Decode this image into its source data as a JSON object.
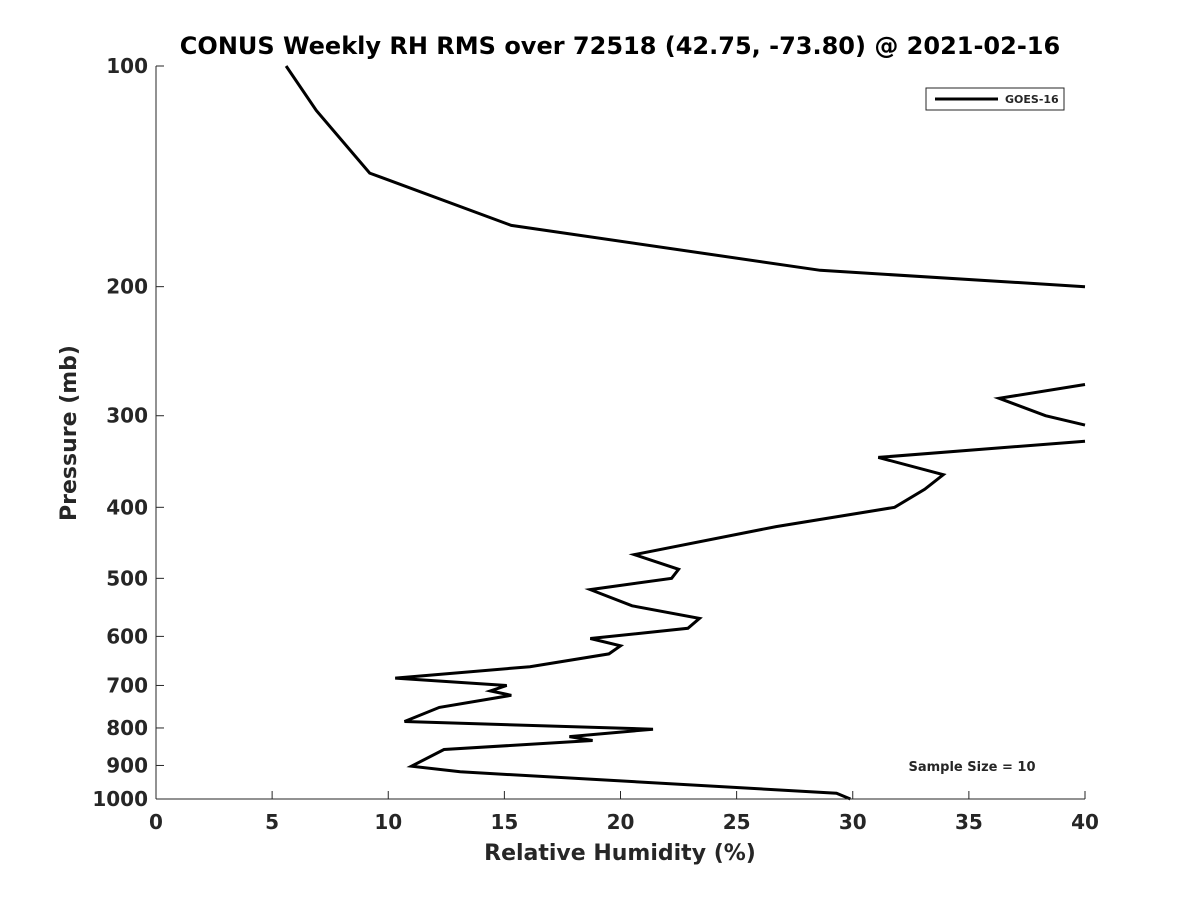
{
  "chart_data": {
    "type": "line",
    "title": "CONUS Weekly RH RMS over 72518 (42.75, -73.80) @ 2021-02-16",
    "xlabel": "Relative Humidity (%)",
    "ylabel": "Pressure (mb)",
    "xlim": [
      0,
      40
    ],
    "ylim": [
      1000,
      100
    ],
    "y_scale": "log",
    "y_reversed": true,
    "grid": false,
    "legend_position": "top-right",
    "x_ticks": [
      0,
      5,
      10,
      15,
      20,
      25,
      30,
      35,
      40
    ],
    "x_tick_labels": [
      "0",
      "5",
      "10",
      "15",
      "20",
      "25",
      "30",
      "35",
      "40"
    ],
    "y_ticks": [
      100,
      200,
      300,
      400,
      500,
      600,
      700,
      800,
      900,
      1000
    ],
    "y_tick_labels": [
      "100",
      "200",
      "300",
      "400",
      "500",
      "600",
      "700",
      "800",
      "900",
      "1000"
    ],
    "annotation": "Sample Size = 10",
    "series": [
      {
        "name": "GOES-16",
        "color": "#000000",
        "segments": [
          [
            {
              "x": 5.6,
              "y": 100
            },
            {
              "x": 6.9,
              "y": 115
            },
            {
              "x": 9.2,
              "y": 140
            },
            {
              "x": 15.3,
              "y": 165
            },
            {
              "x": 28.6,
              "y": 190
            },
            {
              "x": 40.0,
              "y": 200
            }
          ],
          [
            {
              "x": 40.0,
              "y": 272
            },
            {
              "x": 36.3,
              "y": 284
            },
            {
              "x": 38.3,
              "y": 300
            },
            {
              "x": 40.0,
              "y": 309
            }
          ],
          [
            {
              "x": 40.0,
              "y": 325
            },
            {
              "x": 31.1,
              "y": 342
            },
            {
              "x": 33.9,
              "y": 361
            },
            {
              "x": 33.1,
              "y": 378
            },
            {
              "x": 31.8,
              "y": 400
            },
            {
              "x": 26.7,
              "y": 425
            },
            {
              "x": 20.6,
              "y": 464
            },
            {
              "x": 22.5,
              "y": 486
            },
            {
              "x": 22.2,
              "y": 500
            },
            {
              "x": 18.7,
              "y": 518
            },
            {
              "x": 20.5,
              "y": 545
            },
            {
              "x": 23.4,
              "y": 567
            },
            {
              "x": 22.9,
              "y": 585
            },
            {
              "x": 18.7,
              "y": 604
            },
            {
              "x": 20.0,
              "y": 618
            },
            {
              "x": 19.5,
              "y": 634
            },
            {
              "x": 16.1,
              "y": 660
            },
            {
              "x": 10.3,
              "y": 684
            },
            {
              "x": 15.1,
              "y": 700
            },
            {
              "x": 14.4,
              "y": 712
            },
            {
              "x": 15.3,
              "y": 722
            },
            {
              "x": 12.2,
              "y": 750
            },
            {
              "x": 10.7,
              "y": 784
            },
            {
              "x": 21.4,
              "y": 803
            },
            {
              "x": 17.8,
              "y": 822
            },
            {
              "x": 18.8,
              "y": 832
            },
            {
              "x": 12.4,
              "y": 856
            },
            {
              "x": 11.0,
              "y": 902
            },
            {
              "x": 13.1,
              "y": 918
            },
            {
              "x": 29.3,
              "y": 982
            },
            {
              "x": 29.9,
              "y": 1000
            }
          ]
        ]
      }
    ]
  }
}
